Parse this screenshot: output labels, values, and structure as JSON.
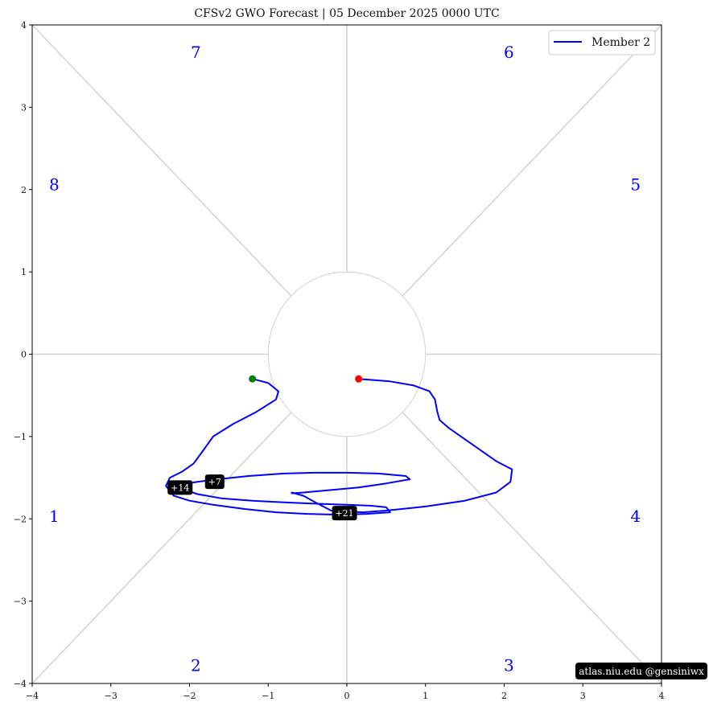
{
  "chart_data": {
    "type": "line",
    "title": "CFSv2 GWO Forecast   |   05  December  2025 0000 UTC",
    "xlim": [
      -4,
      4
    ],
    "ylim": [
      -4,
      4
    ],
    "xticks": [
      "−4",
      "−3",
      "−2",
      "−1",
      "0",
      "1",
      "2",
      "3",
      "4"
    ],
    "yticks": [
      "−4",
      "−3",
      "−2",
      "−1",
      "0",
      "1",
      "2",
      "3",
      "4"
    ],
    "grid": false,
    "legend": {
      "position": "top-right"
    },
    "phase_labels": [
      {
        "label": "1",
        "x": -3.72,
        "y": -1.97
      },
      {
        "label": "2",
        "x": -1.92,
        "y": -3.78
      },
      {
        "label": "3",
        "x": 2.06,
        "y": -3.78
      },
      {
        "label": "4",
        "x": 3.67,
        "y": -1.97
      },
      {
        "label": "5",
        "x": 3.67,
        "y": 2.06
      },
      {
        "label": "6",
        "x": 2.06,
        "y": 3.67
      },
      {
        "label": "7",
        "x": -1.92,
        "y": 3.67
      },
      {
        "label": "8",
        "x": -3.72,
        "y": 2.06
      }
    ],
    "series": [
      {
        "name": "Member 2",
        "color": "#0000ff",
        "start_color": "#ff0000",
        "end_color": "#008000",
        "x": [
          0.15,
          0.55,
          0.85,
          1.05,
          1.12,
          1.15,
          1.18,
          1.3,
          1.6,
          1.9,
          2.1,
          2.08,
          1.9,
          1.5,
          1.0,
          0.5,
          0.2,
          -0.2,
          -0.4,
          -0.55,
          -0.7,
          -0.7,
          -0.55,
          -0.2,
          0.15,
          0.5,
          0.8,
          0.75,
          0.4,
          0.0,
          -0.4,
          -0.8,
          -1.25,
          -1.65,
          -1.9,
          -2.1,
          -2.15,
          -2.05,
          -1.9,
          -1.6,
          -1.2,
          -0.8,
          -0.3,
          0.0,
          0.3,
          0.5,
          0.55,
          0.25,
          -0.1,
          -0.5,
          -0.9,
          -1.3,
          -1.7,
          -2.0,
          -2.2,
          -2.3,
          -2.25,
          -2.1,
          -1.95,
          -1.85,
          -1.7,
          -1.45,
          -1.15,
          -0.9,
          -0.87,
          -1.0,
          -1.2
        ],
        "y": [
          -0.3,
          -0.33,
          -0.38,
          -0.45,
          -0.55,
          -0.7,
          -0.8,
          -0.9,
          -1.1,
          -1.3,
          -1.4,
          -1.55,
          -1.68,
          -1.78,
          -1.85,
          -1.9,
          -1.92,
          -1.9,
          -1.8,
          -1.72,
          -1.68,
          -1.69,
          -1.68,
          -1.65,
          -1.62,
          -1.57,
          -1.52,
          -1.48,
          -1.45,
          -1.44,
          -1.44,
          -1.45,
          -1.48,
          -1.52,
          -1.55,
          -1.58,
          -1.6,
          -1.65,
          -1.7,
          -1.75,
          -1.78,
          -1.8,
          -1.82,
          -1.83,
          -1.84,
          -1.86,
          -1.92,
          -1.94,
          -1.95,
          -1.94,
          -1.92,
          -1.88,
          -1.83,
          -1.78,
          -1.72,
          -1.6,
          -1.5,
          -1.43,
          -1.33,
          -1.2,
          -1.0,
          -0.85,
          -0.7,
          -0.55,
          -0.45,
          -0.35,
          -0.3
        ]
      }
    ],
    "day_markers": [
      {
        "label": "+7",
        "x": -1.68,
        "y": -1.55
      },
      {
        "label": "+14",
        "x": -2.12,
        "y": -1.62
      },
      {
        "label": "+21",
        "x": -0.03,
        "y": -1.93
      }
    ],
    "credit": "atlas.niu.edu  @gensiniwx"
  }
}
